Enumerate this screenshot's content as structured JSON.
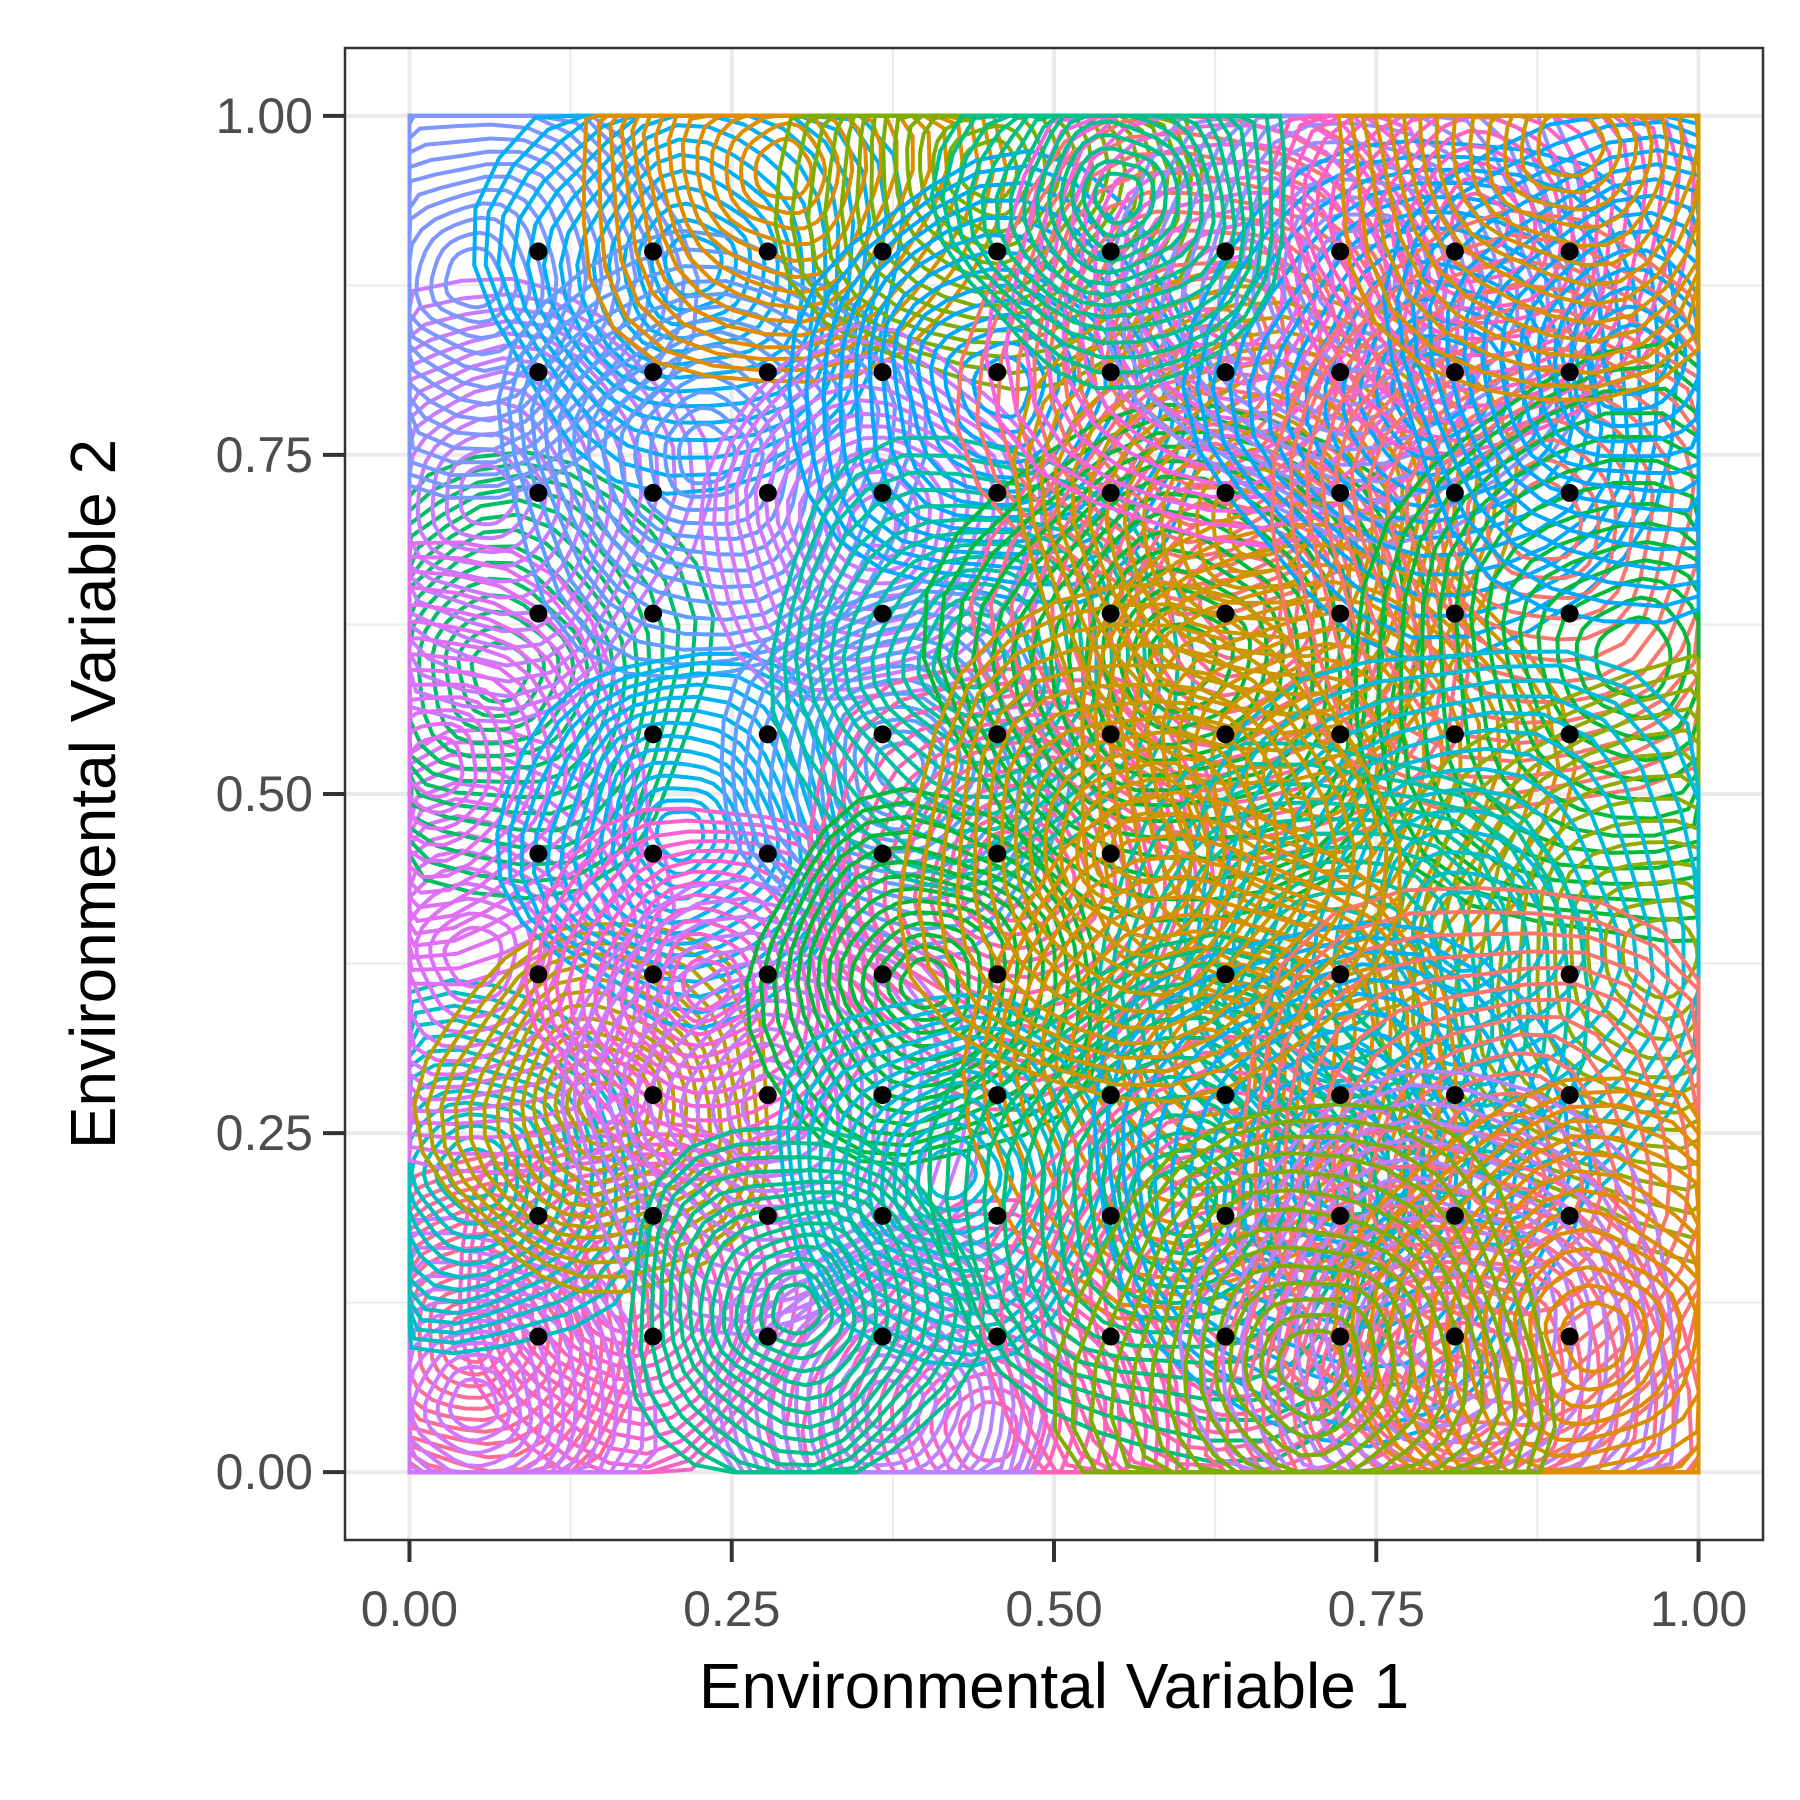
{
  "chart_data": {
    "type": "contour+scatter",
    "title": "",
    "xlabel": "Environmental Variable 1",
    "ylabel": "Environmental Variable 2",
    "xlim": [
      -0.05,
      1.05
    ],
    "ylim": [
      -0.05,
      1.05
    ],
    "x_ticks": [
      "0.00",
      "0.25",
      "0.50",
      "0.75",
      "1.00"
    ],
    "y_ticks": [
      "0.00",
      "0.25",
      "0.50",
      "0.75",
      "1.00"
    ],
    "x_tick_values": [
      0,
      0.25,
      0.5,
      0.75,
      1
    ],
    "y_tick_values": [
      0,
      0.25,
      0.5,
      0.75,
      1
    ],
    "grid": true,
    "legend": "none",
    "points": {
      "description": "site grid",
      "x": [
        0.1,
        0.189,
        0.278,
        0.367,
        0.456,
        0.544,
        0.633,
        0.722,
        0.811,
        0.9
      ],
      "y": [
        0.1,
        0.189,
        0.278,
        0.367,
        0.456,
        0.544,
        0.633,
        0.722,
        0.811,
        0.9
      ],
      "color": "#000000",
      "missing": [
        [
          0.456,
          0.633
        ],
        [
          0.278,
          0.633
        ],
        [
          0.9,
          0.456
        ],
        [
          0.811,
          0.456
        ],
        [
          0.811,
          0.367
        ],
        [
          0.544,
          0.367
        ],
        [
          0.633,
          0.456
        ],
        [
          0.722,
          0.456
        ],
        [
          0.1,
          0.278
        ],
        [
          0.1,
          0.544
        ],
        [
          0.9,
          0.644
        ]
      ]
    },
    "species_contours": [
      {
        "cx": 0.05,
        "cy": 0.1,
        "sd": 0.05,
        "color": "#FF6C91"
      },
      {
        "cx": 0.17,
        "cy": 0.13,
        "sd": 0.05,
        "color": "#F763C9"
      },
      {
        "cx": 0.05,
        "cy": 0.05,
        "sd": 0.05,
        "color": "#CF78FF"
      },
      {
        "cx": 0.05,
        "cy": 0.22,
        "sd": 0.05,
        "color": "#00BFC4"
      },
      {
        "cx": 0.05,
        "cy": 0.38,
        "sd": 0.06,
        "color": "#DC71FA"
      },
      {
        "cx": 0.07,
        "cy": 0.59,
        "sd": 0.06,
        "color": "#00BE67"
      },
      {
        "cx": 0.06,
        "cy": 0.72,
        "sd": 0.06,
        "color": "#C77CFF"
      },
      {
        "cx": 0.05,
        "cy": 0.88,
        "sd": 0.06,
        "color": "#7F96FF"
      },
      {
        "cx": 0.02,
        "cy": 0.52,
        "sd": 0.06,
        "color": "#E36EF6"
      },
      {
        "cx": 0.15,
        "cy": 0.27,
        "sd": 0.05,
        "color": "#B79F00"
      },
      {
        "cx": 0.22,
        "cy": 0.89,
        "sd": 0.06,
        "color": "#00B0F6"
      },
      {
        "cx": 0.23,
        "cy": 0.75,
        "sd": 0.06,
        "color": "#619CFF"
      },
      {
        "cx": 0.29,
        "cy": 0.96,
        "sd": 0.06,
        "color": "#DE8C00"
      },
      {
        "cx": 0.45,
        "cy": 0.96,
        "sd": 0.06,
        "color": "#7CAE00"
      },
      {
        "cx": 0.21,
        "cy": 0.47,
        "sd": 0.05,
        "color": "#00B4EF"
      },
      {
        "cx": 0.23,
        "cy": 0.36,
        "sd": 0.05,
        "color": "#FD61D1"
      },
      {
        "cx": 0.28,
        "cy": 0.27,
        "sd": 0.06,
        "color": "#C77CFF"
      },
      {
        "cx": 0.36,
        "cy": 0.7,
        "sd": 0.05,
        "color": "#D078FF"
      },
      {
        "cx": 0.46,
        "cy": 0.8,
        "sd": 0.06,
        "color": "#00A9FF"
      },
      {
        "cx": 0.38,
        "cy": 0.52,
        "sd": 0.05,
        "color": "#619CFF"
      },
      {
        "cx": 0.47,
        "cy": 0.44,
        "sd": 0.06,
        "color": "#FF64B0"
      },
      {
        "cx": 0.44,
        "cy": 0.6,
        "sd": 0.06,
        "color": "#00C1A3"
      },
      {
        "cx": 0.4,
        "cy": 0.36,
        "sd": 0.05,
        "color": "#00BA38"
      },
      {
        "cx": 0.45,
        "cy": 0.03,
        "sd": 0.06,
        "color": "#FF61C3"
      },
      {
        "cx": 0.37,
        "cy": 0.05,
        "sd": 0.05,
        "color": "#B983FF"
      },
      {
        "cx": 0.42,
        "cy": 0.22,
        "sd": 0.05,
        "color": "#00BCD8"
      },
      {
        "cx": 0.3,
        "cy": 0.12,
        "sd": 0.05,
        "color": "#00C08B"
      },
      {
        "cx": 0.62,
        "cy": 0.82,
        "sd": 0.07,
        "color": "#F8766D"
      },
      {
        "cx": 0.64,
        "cy": 0.64,
        "sd": 0.07,
        "color": "#FF6C91"
      },
      {
        "cx": 0.6,
        "cy": 0.6,
        "sd": 0.07,
        "color": "#00BA38"
      },
      {
        "cx": 0.66,
        "cy": 0.7,
        "sd": 0.07,
        "color": "#C99800"
      },
      {
        "cx": 0.7,
        "cy": 0.52,
        "sd": 0.07,
        "color": "#D39200"
      },
      {
        "cx": 0.64,
        "cy": 0.87,
        "sd": 0.07,
        "color": "#F564E3"
      },
      {
        "cx": 0.74,
        "cy": 0.88,
        "sd": 0.07,
        "color": "#9590FF"
      },
      {
        "cx": 0.8,
        "cy": 0.8,
        "sd": 0.07,
        "color": "#00A9FF"
      },
      {
        "cx": 0.83,
        "cy": 0.92,
        "sd": 0.06,
        "color": "#FF61C3"
      },
      {
        "cx": 0.88,
        "cy": 0.7,
        "sd": 0.08,
        "color": "#F8766D"
      },
      {
        "cx": 0.95,
        "cy": 0.6,
        "sd": 0.08,
        "color": "#00BA38"
      },
      {
        "cx": 0.97,
        "cy": 0.38,
        "sd": 0.08,
        "color": "#93AA00"
      },
      {
        "cx": 0.82,
        "cy": 0.4,
        "sd": 0.08,
        "color": "#00BCD8"
      },
      {
        "cx": 0.72,
        "cy": 0.35,
        "sd": 0.07,
        "color": "#00C1A3"
      },
      {
        "cx": 0.62,
        "cy": 0.3,
        "sd": 0.07,
        "color": "#DE8C00"
      },
      {
        "cx": 0.64,
        "cy": 0.12,
        "sd": 0.07,
        "color": "#FF64B0"
      },
      {
        "cx": 0.6,
        "cy": 0.2,
        "sd": 0.07,
        "color": "#00BF7D"
      },
      {
        "cx": 0.72,
        "cy": 0.22,
        "sd": 0.07,
        "color": "#00B0F6"
      },
      {
        "cx": 0.85,
        "cy": 0.22,
        "sd": 0.08,
        "color": "#F8766D"
      },
      {
        "cx": 0.81,
        "cy": 0.06,
        "sd": 0.07,
        "color": "#FF6C91"
      },
      {
        "cx": 0.8,
        "cy": 0.1,
        "sd": 0.07,
        "color": "#B983FF"
      },
      {
        "cx": 0.92,
        "cy": 0.1,
        "sd": 0.07,
        "color": "#DE8C00"
      },
      {
        "cx": 0.95,
        "cy": 0.82,
        "sd": 0.07,
        "color": "#00A9FF"
      },
      {
        "cx": 0.9,
        "cy": 0.98,
        "sd": 0.07,
        "color": "#D39200"
      },
      {
        "cx": 0.57,
        "cy": 0.46,
        "sd": 0.07,
        "color": "#C99800"
      },
      {
        "cx": 0.7,
        "cy": 0.08,
        "sd": 0.07,
        "color": "#7CAE00"
      },
      {
        "cx": 0.55,
        "cy": 0.94,
        "sd": 0.05,
        "color": "#00C08B"
      }
    ]
  }
}
